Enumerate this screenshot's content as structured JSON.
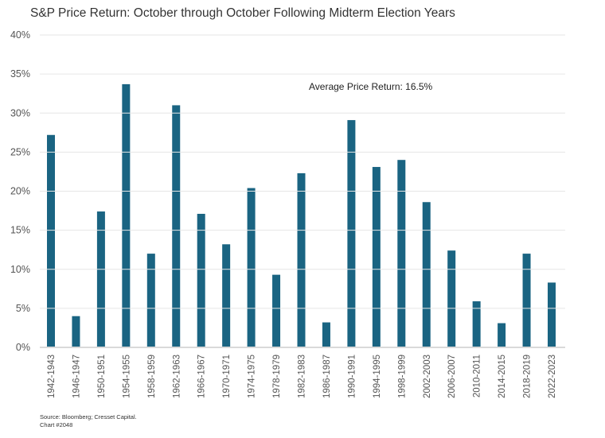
{
  "chart_data": {
    "type": "bar",
    "title": "S&P Price Return: October through October Following Midterm Election Years",
    "categories": [
      "1942-1943",
      "1946-1947",
      "1950-1951",
      "1954-1955",
      "1958-1959",
      "1962-1963",
      "1966-1967",
      "1970-1971",
      "1974-1975",
      "1978-1979",
      "1982-1983",
      "1986-1987",
      "1990-1991",
      "1994-1995",
      "1998-1999",
      "2002-2003",
      "2006-2007",
      "2010-2011",
      "2014-2015",
      "2018-2019",
      "2022-2023"
    ],
    "values": [
      27.2,
      4.0,
      17.4,
      33.7,
      12.0,
      31.0,
      17.1,
      13.2,
      20.4,
      9.3,
      22.3,
      3.2,
      29.1,
      23.1,
      24.0,
      18.6,
      12.4,
      5.9,
      3.1,
      12.0,
      8.3
    ],
    "ylim": [
      0,
      40
    ],
    "yticks": [
      "0%",
      "5%",
      "10%",
      "15%",
      "20%",
      "25%",
      "30%",
      "35%",
      "40%"
    ],
    "annotation": "Average Price Return: 16.5%",
    "grid": true,
    "bar_color": "#1a6482",
    "source": "Source: Bloomberg; Cresset Capital.",
    "chart_number": "Chart #2048"
  }
}
